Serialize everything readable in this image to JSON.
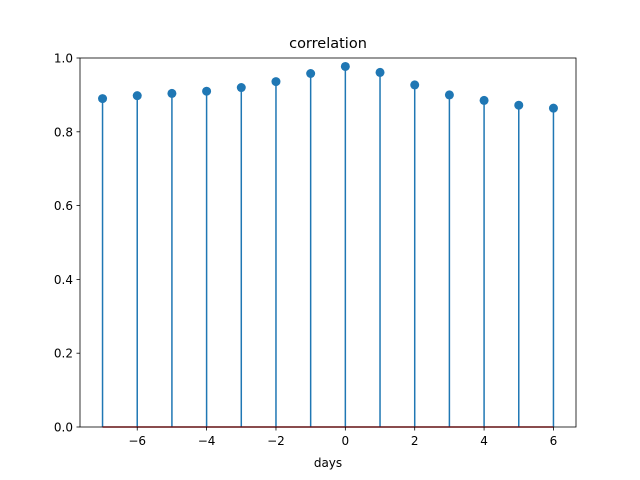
{
  "chart_data": {
    "type": "stem",
    "title": "correlation",
    "xlabel": "days",
    "ylabel": "",
    "x": [
      -7,
      -6,
      -5,
      -4,
      -3,
      -2,
      -1,
      0,
      1,
      2,
      3,
      4,
      5,
      6
    ],
    "y": [
      0.89,
      0.898,
      0.904,
      0.91,
      0.92,
      0.936,
      0.958,
      0.977,
      0.961,
      0.927,
      0.9,
      0.885,
      0.872,
      0.864
    ],
    "xlim": [
      -7.65,
      6.65
    ],
    "ylim": [
      0.0,
      1.0
    ],
    "x_ticks": [
      -6,
      -4,
      -2,
      0,
      2,
      4,
      6
    ],
    "x_tick_labels": [
      "−6",
      "−4",
      "−2",
      "0",
      "2",
      "4",
      "6"
    ],
    "y_ticks": [
      0.0,
      0.2,
      0.4,
      0.6,
      0.8,
      1.0
    ],
    "y_tick_labels": [
      "0.0",
      "0.2",
      "0.4",
      "0.6",
      "0.8",
      "1.0"
    ],
    "baseline": 0.0,
    "grid": false,
    "colors": {
      "stem": "#1f77b4",
      "marker": "#1f77b4",
      "baseline": "#d62728",
      "axes": "#000000"
    }
  }
}
